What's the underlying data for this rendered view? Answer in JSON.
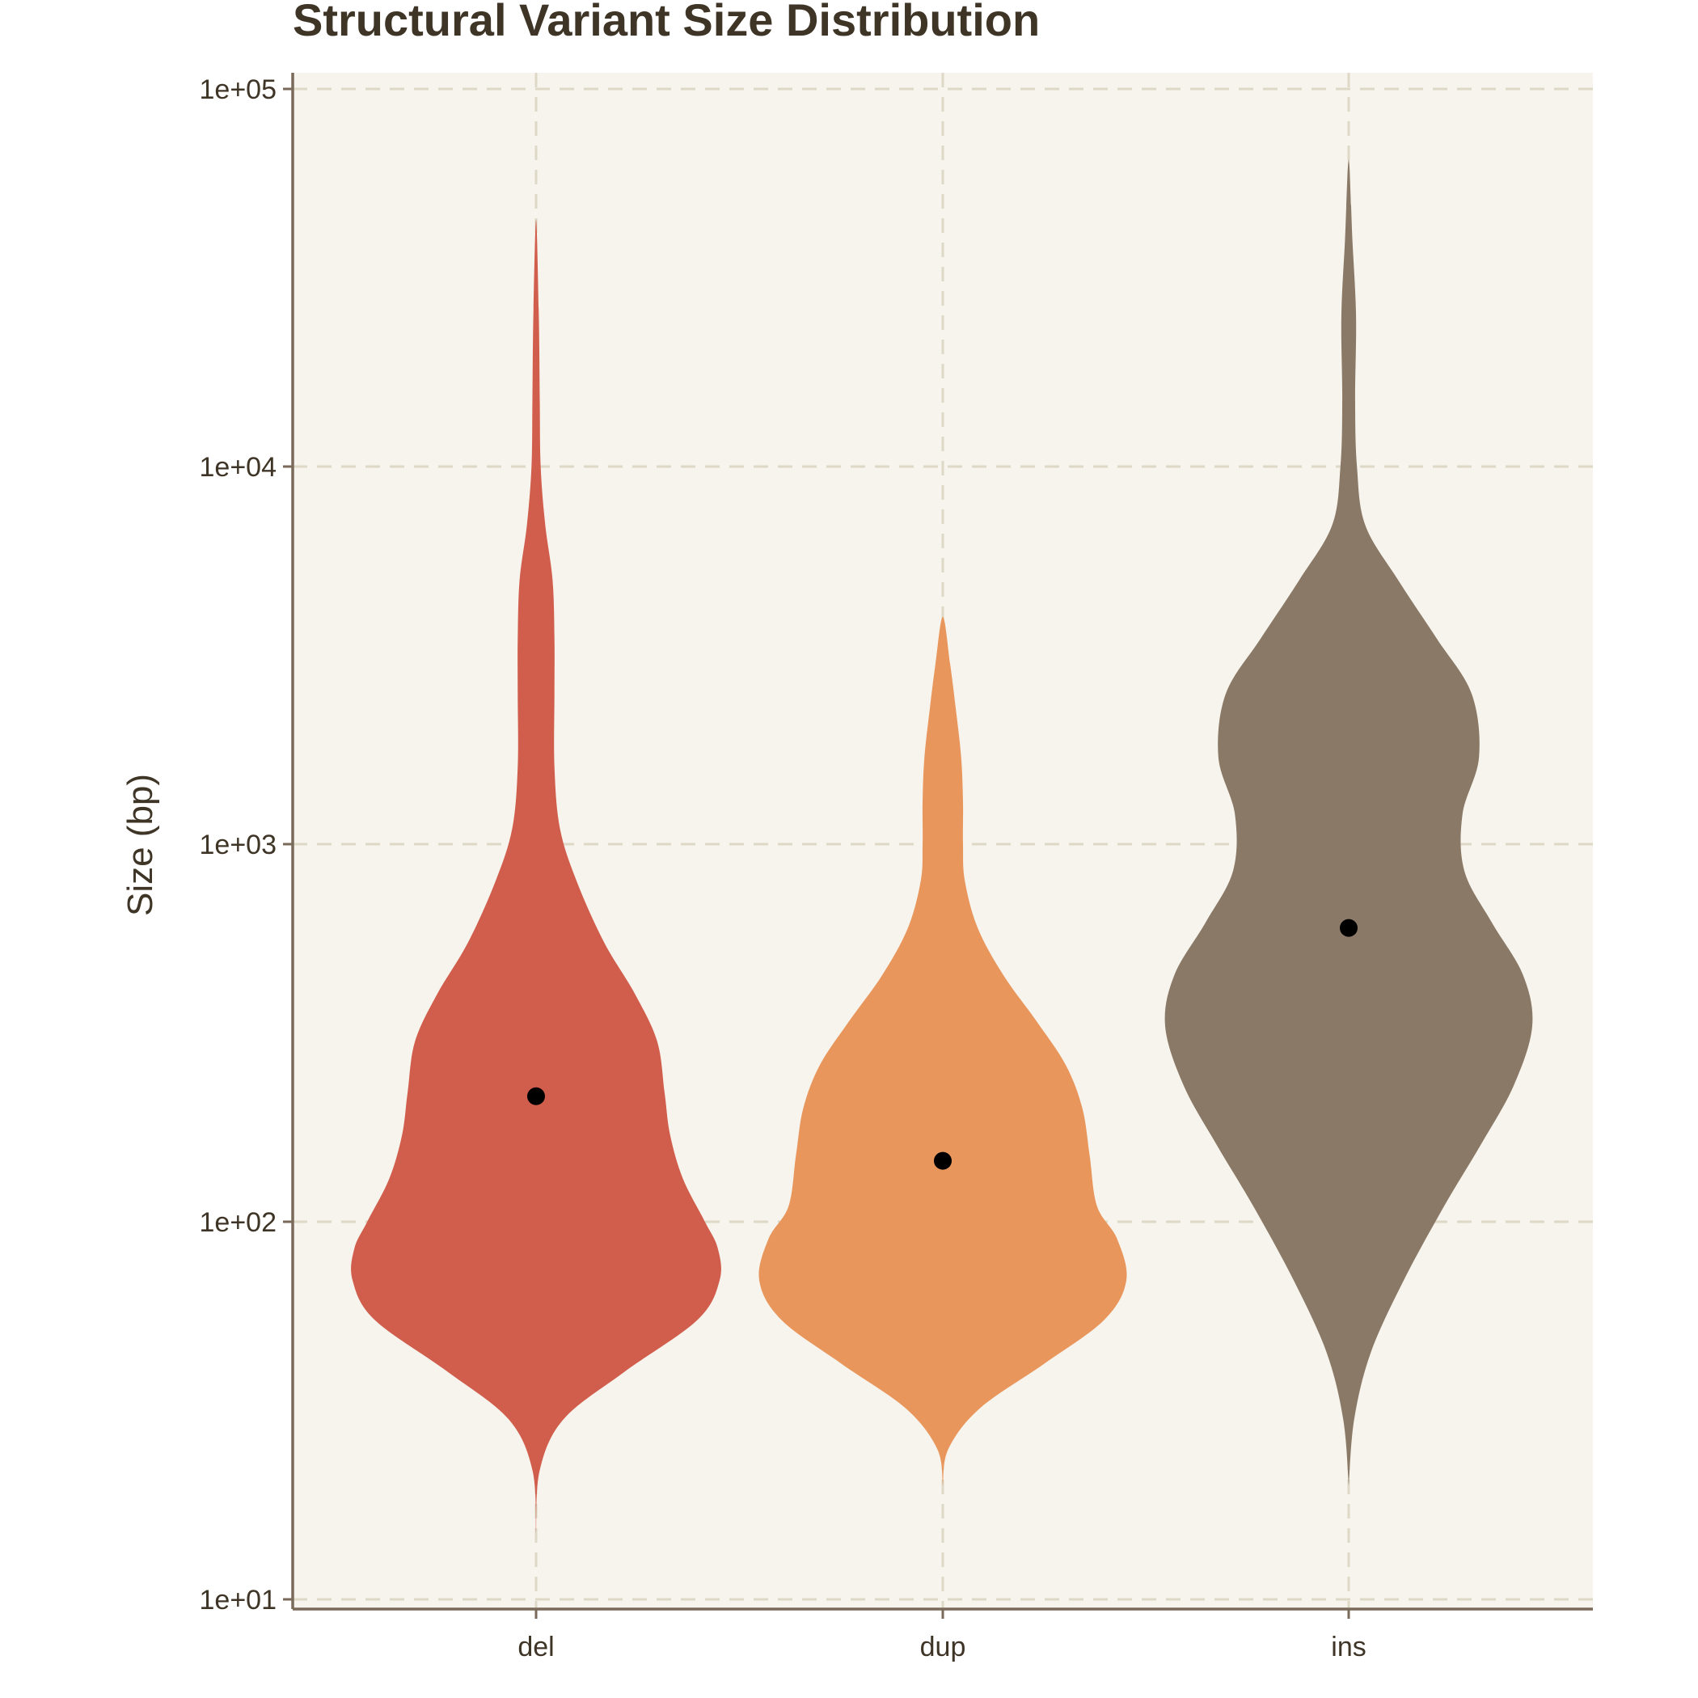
{
  "chart_data": {
    "type": "violin",
    "title": "Structural Variant Size Distribution",
    "xlabel": "",
    "ylabel": "Size (bp)",
    "y_scale": "log10",
    "ylim": [
      10,
      100000
    ],
    "y_ticks": [
      10,
      100,
      1000,
      10000,
      100000
    ],
    "y_tick_labels": [
      "1e+01",
      "1e+02",
      "1e+03",
      "1e+04",
      "1e+05"
    ],
    "categories": [
      "del",
      "dup",
      "ins"
    ],
    "grid": true,
    "legend": "none",
    "background_color": "#f7f4ed",
    "point_color": "#000000",
    "series": [
      {
        "category": "del",
        "color": "#d15e4c",
        "median": 215,
        "min": 15,
        "max": 45000,
        "density_profile": [
          [
            15,
            0.0
          ],
          [
            22,
            0.02
          ],
          [
            30,
            0.15
          ],
          [
            40,
            0.48
          ],
          [
            55,
            0.88
          ],
          [
            70,
            1.0
          ],
          [
            85,
            0.99
          ],
          [
            100,
            0.92
          ],
          [
            130,
            0.8
          ],
          [
            170,
            0.73
          ],
          [
            220,
            0.7
          ],
          [
            300,
            0.66
          ],
          [
            400,
            0.54
          ],
          [
            550,
            0.37
          ],
          [
            800,
            0.22
          ],
          [
            1100,
            0.13
          ],
          [
            1600,
            0.1
          ],
          [
            2500,
            0.1
          ],
          [
            3500,
            0.1
          ],
          [
            5000,
            0.09
          ],
          [
            7000,
            0.05
          ],
          [
            10000,
            0.025
          ],
          [
            15000,
            0.02
          ],
          [
            25000,
            0.015
          ],
          [
            45000,
            0.0
          ]
        ]
      },
      {
        "category": "dup",
        "color": "#e8965c",
        "median": 145,
        "min": 20,
        "max": 4000,
        "density_profile": [
          [
            20,
            0.0
          ],
          [
            25,
            0.03
          ],
          [
            32,
            0.2
          ],
          [
            42,
            0.55
          ],
          [
            55,
            0.88
          ],
          [
            70,
            1.0
          ],
          [
            90,
            0.95
          ],
          [
            110,
            0.84
          ],
          [
            150,
            0.8
          ],
          [
            200,
            0.76
          ],
          [
            260,
            0.67
          ],
          [
            340,
            0.51
          ],
          [
            450,
            0.33
          ],
          [
            600,
            0.19
          ],
          [
            800,
            0.12
          ],
          [
            1000,
            0.11
          ],
          [
            1300,
            0.11
          ],
          [
            1700,
            0.1
          ],
          [
            2300,
            0.07
          ],
          [
            3000,
            0.04
          ],
          [
            4000,
            0.0
          ]
        ]
      },
      {
        "category": "ins",
        "color": "#8a7966",
        "median": 600,
        "min": 20,
        "max": 65000,
        "density_profile": [
          [
            20,
            0.0
          ],
          [
            30,
            0.03
          ],
          [
            45,
            0.12
          ],
          [
            70,
            0.3
          ],
          [
            110,
            0.52
          ],
          [
            160,
            0.72
          ],
          [
            230,
            0.9
          ],
          [
            330,
            1.0
          ],
          [
            450,
            0.95
          ],
          [
            620,
            0.78
          ],
          [
            850,
            0.63
          ],
          [
            1200,
            0.62
          ],
          [
            1700,
            0.71
          ],
          [
            2500,
            0.67
          ],
          [
            3500,
            0.48
          ],
          [
            5000,
            0.27
          ],
          [
            7000,
            0.09
          ],
          [
            10000,
            0.045
          ],
          [
            15000,
            0.035
          ],
          [
            25000,
            0.04
          ],
          [
            40000,
            0.02
          ],
          [
            65000,
            0.0
          ]
        ]
      }
    ]
  }
}
